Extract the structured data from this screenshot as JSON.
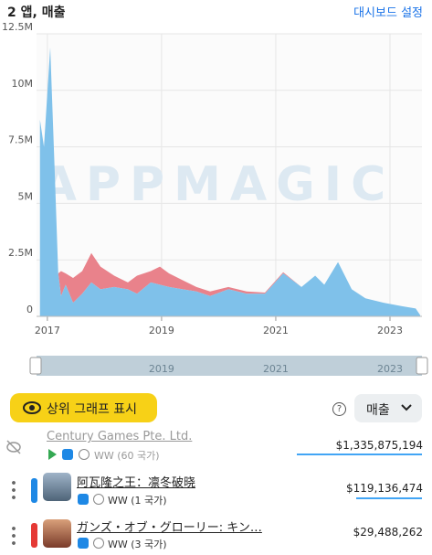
{
  "header": {
    "title": "2 앱, 매출",
    "settings": "대시보드 설정"
  },
  "chart_data": {
    "type": "area",
    "stacked": true,
    "watermark": "APPMAGIC",
    "x": [
      2016.87,
      2016.94,
      2017.05,
      2017.13,
      2017.19,
      2017.24,
      2017.32,
      2017.45,
      2017.61,
      2017.77,
      2017.93,
      2018.17,
      2018.41,
      2018.57,
      2018.81,
      2018.97,
      2019.13,
      2019.37,
      2019.61,
      2019.85,
      2020.17,
      2020.49,
      2020.81,
      2021.13,
      2021.45,
      2021.69,
      2021.85,
      2022.09,
      2022.33,
      2022.57,
      2022.89,
      2023.21,
      2023.45,
      2023.53
    ],
    "series": [
      {
        "color": "#7fc1ea",
        "values": [
          8700000,
          7500000,
          11900000,
          6300000,
          1900000,
          900000,
          1400000,
          600000,
          1000000,
          1500000,
          1200000,
          1300000,
          1200000,
          1000000,
          1500000,
          1400000,
          1300000,
          1200000,
          1100000,
          900000,
          1200000,
          1000000,
          1000000,
          1900000,
          1300000,
          1800000,
          1400000,
          2400000,
          1200000,
          800000,
          600000,
          450000,
          350000,
          50000
        ]
      },
      {
        "color": "#e9828b",
        "values": [
          0,
          0,
          0,
          0,
          0,
          1100000,
          500000,
          1100000,
          1000000,
          1300000,
          1000000,
          500000,
          300000,
          800000,
          500000,
          800000,
          600000,
          400000,
          200000,
          200000,
          100000,
          100000,
          50000,
          50000,
          0,
          0,
          0,
          0,
          0,
          0,
          0,
          0,
          0,
          0
        ]
      }
    ],
    "xlim": [
      2016.81,
      2023.56
    ],
    "xticks": [
      2017,
      2019,
      2021,
      2023
    ],
    "ylim": [
      0,
      12500000
    ],
    "yticks": [
      0,
      {
        "value": 2500000,
        "label": "2.5M"
      },
      {
        "value": 5000000,
        "label": "5M"
      },
      {
        "value": 7500000,
        "label": "7.5M"
      },
      {
        "value": 10000000,
        "label": "10M"
      },
      {
        "value": 12500000,
        "label": "12.5M"
      }
    ],
    "grid": true
  },
  "controls": {
    "show_top": "상위 그래프 표시",
    "help": "?",
    "metric": "매출"
  },
  "list": [
    {
      "name": "Century Games Pte. Ltd.",
      "region": "WW (60 국가)",
      "revenue": "$1,335,875,194"
    },
    {
      "name": "阿瓦隆之王：凛冬破晓",
      "region": "WW (1 국가)",
      "revenue": "$119,136,474"
    },
    {
      "name": "ガンズ・オブ・グローリー: キン…",
      "region": "WW (3 국가)",
      "revenue": "$29,488,262"
    }
  ]
}
